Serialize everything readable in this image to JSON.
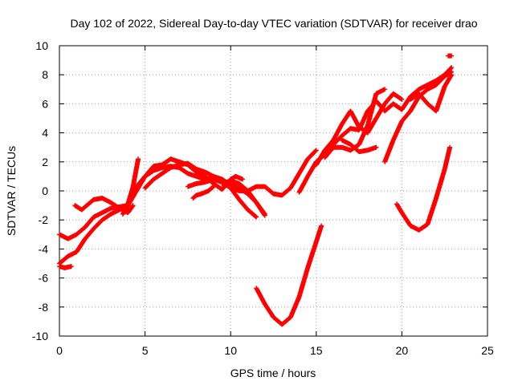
{
  "chart_data": {
    "type": "scatter",
    "title": "Day 102 of 2022, Sidereal Day-to-day VTEC variation (SDTVAR) for receiver drao",
    "xlabel": "GPS time / hours",
    "ylabel": "SDTVAR / TECUs",
    "xlim": [
      0,
      25
    ],
    "ylim": [
      -10,
      10
    ],
    "xticks": [
      "0",
      "5",
      "10",
      "15",
      "20",
      "25"
    ],
    "yticks": [
      "-10",
      "-8",
      "-6",
      "-4",
      "-2",
      "0",
      "2",
      "4",
      "6",
      "8",
      "10"
    ],
    "grid": true,
    "marker": "+",
    "color": "#ff0000",
    "series": [
      {
        "x": [
          0.0,
          0.5,
          1.0,
          1.5,
          2.0,
          2.5,
          3.0,
          3.5,
          4.0,
          4.3,
          4.6
        ],
        "y": [
          -5.0,
          -4.5,
          -4.2,
          -3.3,
          -2.6,
          -2.0,
          -1.6,
          -1.3,
          -0.9,
          0.3,
          2.2
        ]
      },
      {
        "x": [
          0.0,
          0.5,
          1.0,
          1.5,
          2.0,
          2.5,
          3.0,
          3.5,
          4.0
        ],
        "y": [
          -3.0,
          -3.3,
          -3.0,
          -2.5,
          -1.8,
          -1.5,
          -1.2,
          -1.1,
          -1.0
        ]
      },
      {
        "x": [
          0.0,
          0.3,
          0.7
        ],
        "y": [
          -5.2,
          -5.3,
          -5.2
        ]
      },
      {
        "x": [
          0.9,
          1.3,
          1.6,
          2.0,
          2.5,
          3.0,
          3.5,
          4.0,
          4.3
        ],
        "y": [
          -1.0,
          -1.3,
          -1.0,
          -0.6,
          -0.5,
          -0.8,
          -1.2,
          -1.5,
          -1.0
        ]
      },
      {
        "x": [
          3.7,
          4.0,
          4.5,
          5.0,
          5.5,
          6.0,
          6.5,
          7.0,
          7.5,
          8.0,
          8.5,
          9.0,
          9.5,
          10.0,
          10.5,
          11.0,
          11.5,
          12.0,
          12.5,
          13.0,
          13.5,
          14.0,
          14.5,
          15.0
        ],
        "y": [
          -1.6,
          -1.0,
          0.0,
          1.0,
          1.4,
          1.6,
          1.7,
          1.6,
          1.2,
          1.0,
          0.8,
          0.9,
          0.6,
          0.2,
          0.0,
          0.0,
          0.3,
          0.3,
          -0.2,
          -0.3,
          0.2,
          1.2,
          2.2,
          2.8
        ]
      },
      {
        "x": [
          4.2,
          4.5,
          5.0,
          5.5,
          6.0,
          6.5,
          7.0,
          7.5,
          8.0,
          8.5,
          9.0,
          9.5,
          10.0,
          10.3,
          10.7
        ],
        "y": [
          -0.3,
          0.3,
          1.0,
          1.7,
          1.8,
          2.2,
          2.0,
          1.8,
          1.3,
          1.0,
          0.5,
          0.1,
          0.8,
          1.0,
          0.8
        ]
      },
      {
        "x": [
          5.0,
          5.5,
          6.0,
          6.5,
          7.0,
          7.5,
          8.0,
          8.5,
          9.0,
          9.5,
          10.0,
          10.5,
          11.0,
          11.5,
          12.0
        ],
        "y": [
          0.2,
          0.8,
          1.2,
          1.6,
          1.8,
          1.9,
          1.5,
          1.3,
          1.0,
          0.8,
          0.4,
          0.2,
          -0.2,
          -0.8,
          -1.6
        ]
      },
      {
        "x": [
          7.5,
          8.0,
          8.5,
          9.0,
          9.5,
          10.0,
          10.5,
          11.0,
          11.5
        ],
        "y": [
          0.3,
          0.5,
          0.6,
          0.8,
          0.6,
          0.2,
          -0.6,
          -1.3,
          -1.8
        ]
      },
      {
        "x": [
          7.8,
          8.0,
          8.3,
          8.7,
          9.0
        ],
        "y": [
          -0.5,
          -0.3,
          -0.2,
          0.0,
          0.3
        ]
      },
      {
        "x": [
          9.5,
          10.0,
          10.5,
          11.0,
          11.5,
          12.0
        ],
        "y": [
          0.5,
          0.7,
          0.5,
          0.0,
          -0.8,
          -1.7
        ]
      },
      {
        "x": [
          11.5,
          12.0,
          12.5,
          13.0,
          13.5,
          14.0,
          14.5,
          15.0,
          15.3
        ],
        "y": [
          -6.7,
          -7.8,
          -8.7,
          -9.2,
          -8.7,
          -7.3,
          -5.3,
          -3.5,
          -2.4
        ]
      },
      {
        "x": [
          14.0,
          14.5,
          15.0,
          15.5,
          16.0,
          16.5,
          17.0,
          17.5,
          18.0,
          18.5,
          19.0,
          19.5,
          20.0,
          20.5,
          21.0,
          21.5,
          22.0,
          22.5,
          22.9
        ],
        "y": [
          -0.1,
          1.0,
          2.0,
          2.5,
          3.2,
          3.8,
          4.3,
          4.2,
          5.5,
          6.2,
          5.5,
          6.0,
          5.6,
          6.5,
          7.0,
          7.3,
          7.6,
          8.0,
          8.5
        ]
      },
      {
        "x": [
          15.0,
          15.5,
          16.0,
          16.5,
          17.0,
          17.5,
          18.0,
          18.5,
          19.0,
          19.5,
          20.0
        ],
        "y": [
          1.8,
          2.8,
          3.5,
          4.6,
          5.5,
          4.4,
          4.0,
          5.0,
          6.0,
          6.7,
          6.3
        ]
      },
      {
        "x": [
          15.5,
          16.0,
          16.5,
          17.0,
          17.5,
          18.0,
          18.5,
          19.0
        ],
        "y": [
          2.3,
          3.0,
          3.0,
          2.8,
          3.2,
          4.5,
          6.7,
          7.0
        ]
      },
      {
        "x": [
          16.5,
          17.0,
          17.5,
          18.0,
          18.5
        ],
        "y": [
          3.5,
          3.2,
          2.7,
          2.8,
          3.0
        ]
      },
      {
        "x": [
          19.0,
          19.5,
          20.0,
          20.5,
          21.0,
          21.5,
          22.0,
          22.5,
          22.9
        ],
        "y": [
          2.0,
          3.5,
          4.8,
          5.5,
          6.5,
          7.0,
          7.3,
          7.9,
          8.2
        ]
      },
      {
        "x": [
          20.5,
          21.0,
          21.5,
          22.0,
          22.5,
          22.9
        ],
        "y": [
          6.3,
          6.7,
          6.0,
          5.5,
          7.2,
          8.0
        ]
      },
      {
        "x": [
          19.7,
          20.0,
          20.5,
          21.0,
          21.5,
          22.0,
          22.5,
          22.8
        ],
        "y": [
          -0.9,
          -1.5,
          -2.4,
          -2.7,
          -2.3,
          -0.5,
          1.5,
          3.0
        ]
      },
      {
        "x": [
          22.7,
          22.9
        ],
        "y": [
          9.3,
          9.3
        ]
      }
    ]
  }
}
